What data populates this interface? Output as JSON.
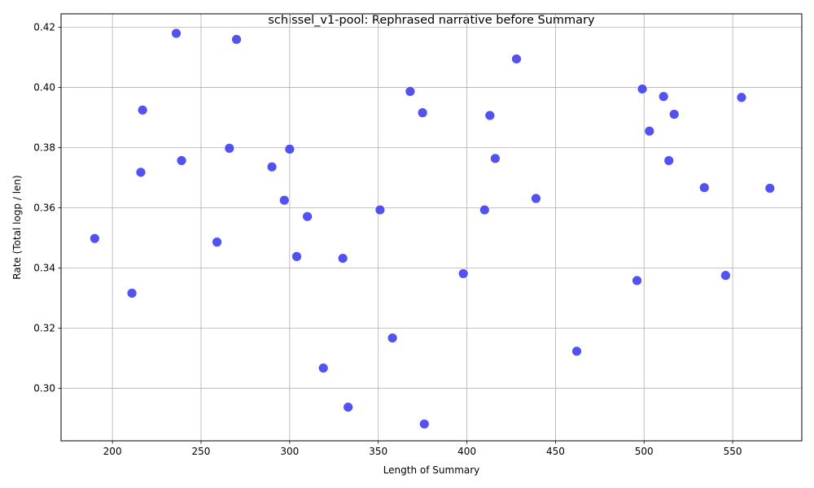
{
  "chart_data": {
    "type": "scatter",
    "title": "schissel_v1-pool: Rephrased narrative before Summary",
    "xlabel": "Length of Summary",
    "ylabel": "Rate (Total logp / len)",
    "xlim": [
      171,
      589
    ],
    "ylim": [
      0.2825,
      0.4245
    ],
    "xticks": [
      200,
      250,
      300,
      350,
      400,
      450,
      500,
      550
    ],
    "yticks": [
      0.3,
      0.32,
      0.34,
      0.36,
      0.38,
      0.4,
      0.42
    ],
    "xtick_labels": [
      "200",
      "250",
      "300",
      "350",
      "400",
      "450",
      "500",
      "550"
    ],
    "ytick_labels": [
      "0.30",
      "0.32",
      "0.34",
      "0.36",
      "0.38",
      "0.40",
      "0.42"
    ],
    "grid": true,
    "marker_color": "#3f3ff0",
    "points": [
      {
        "x": 190,
        "y": 0.3498
      },
      {
        "x": 211,
        "y": 0.3316
      },
      {
        "x": 216,
        "y": 0.3718
      },
      {
        "x": 217,
        "y": 0.3925
      },
      {
        "x": 236,
        "y": 0.418
      },
      {
        "x": 239,
        "y": 0.3757
      },
      {
        "x": 259,
        "y": 0.3486
      },
      {
        "x": 266,
        "y": 0.3798
      },
      {
        "x": 270,
        "y": 0.416
      },
      {
        "x": 290,
        "y": 0.3736
      },
      {
        "x": 297,
        "y": 0.3625
      },
      {
        "x": 300,
        "y": 0.3795
      },
      {
        "x": 304,
        "y": 0.3438
      },
      {
        "x": 310,
        "y": 0.3571
      },
      {
        "x": 319,
        "y": 0.3067
      },
      {
        "x": 330,
        "y": 0.3432
      },
      {
        "x": 333,
        "y": 0.2937
      },
      {
        "x": 351,
        "y": 0.3593
      },
      {
        "x": 358,
        "y": 0.3167
      },
      {
        "x": 368,
        "y": 0.3987
      },
      {
        "x": 375,
        "y": 0.3916
      },
      {
        "x": 376,
        "y": 0.2881
      },
      {
        "x": 398,
        "y": 0.3381
      },
      {
        "x": 410,
        "y": 0.3593
      },
      {
        "x": 413,
        "y": 0.3907
      },
      {
        "x": 416,
        "y": 0.3764
      },
      {
        "x": 428,
        "y": 0.4095
      },
      {
        "x": 439,
        "y": 0.3631
      },
      {
        "x": 462,
        "y": 0.3123
      },
      {
        "x": 496,
        "y": 0.3358
      },
      {
        "x": 499,
        "y": 0.3995
      },
      {
        "x": 503,
        "y": 0.3855
      },
      {
        "x": 511,
        "y": 0.397
      },
      {
        "x": 514,
        "y": 0.3757
      },
      {
        "x": 517,
        "y": 0.3911
      },
      {
        "x": 534,
        "y": 0.3667
      },
      {
        "x": 546,
        "y": 0.3375
      },
      {
        "x": 555,
        "y": 0.3967
      },
      {
        "x": 571,
        "y": 0.3665
      }
    ]
  }
}
